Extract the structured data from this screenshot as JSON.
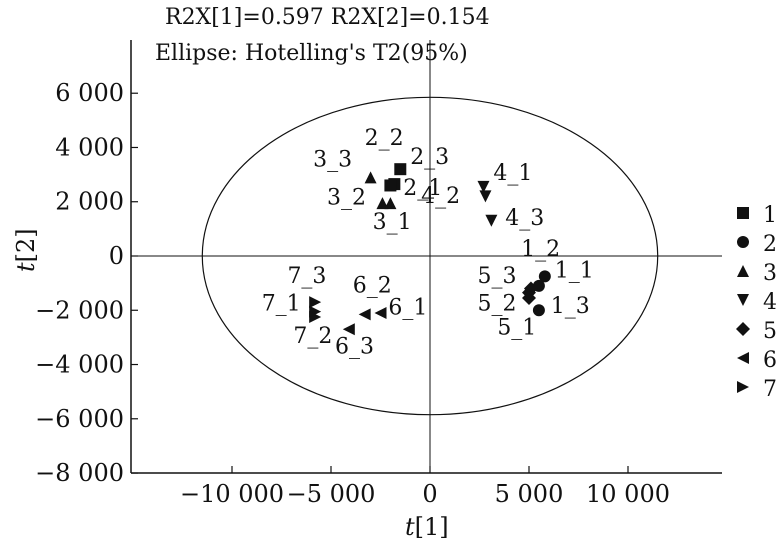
{
  "chart_data": {
    "type": "scatter",
    "title_line1": "R2X[1]=0.597 R2X[2]=0.154",
    "title_line2": "Ellipse: Hotelling's T2(95%)",
    "xlabel": {
      "main": "t",
      "sub": "[1]"
    },
    "ylabel": {
      "main": "t",
      "sub": "[2]"
    },
    "xlim": [
      -15000,
      15000
    ],
    "ylim": [
      -8000,
      8000
    ],
    "x_ticks": [
      -10000,
      -5000,
      0,
      5000,
      10000
    ],
    "x_tick_labels": [
      "−10 000",
      "−5 000",
      "0",
      "5 000",
      "10 000"
    ],
    "y_ticks": [
      6000,
      4000,
      2000,
      0,
      -2000,
      -4000,
      -6000,
      -8000
    ],
    "y_tick_labels": [
      "6 000",
      "4 000",
      "2 000",
      "0",
      "−2 000",
      "−4 000",
      "−6 000",
      "−8 000"
    ],
    "ellipse": {
      "cx": 0,
      "cy": 0,
      "rx": 11500,
      "ry": 5850
    },
    "grid": false,
    "legend_position": "right",
    "series": [
      {
        "name": "1",
        "marker": "square",
        "points": [
          {
            "label": "1_1",
            "x": -1800,
            "y": 2650
          },
          {
            "label": "1_2",
            "x": -1500,
            "y": 3200
          },
          {
            "label": "1_3",
            "x": -2000,
            "y": 2600
          }
        ]
      },
      {
        "name": "2",
        "marker": "circle",
        "points": [
          {
            "label": "2_1",
            "x": 5800,
            "y": -750
          },
          {
            "label": "2_2",
            "x": 5500,
            "y": -1100
          },
          {
            "label": "2_3",
            "x": 5500,
            "y": -2000
          }
        ]
      },
      {
        "name": "3",
        "marker": "triangle-up",
        "points": [
          {
            "label": "3_1",
            "x": -2000,
            "y": 1950
          },
          {
            "label": "3_2",
            "x": -2400,
            "y": 1950
          },
          {
            "label": "3_3",
            "x": -3000,
            "y": 2900
          }
        ]
      },
      {
        "name": "4",
        "marker": "triangle-down",
        "points": [
          {
            "label": "4_1",
            "x": 2700,
            "y": 2550
          },
          {
            "label": "4_2",
            "x": 2800,
            "y": 2200
          },
          {
            "label": "4_3",
            "x": 3100,
            "y": 1300
          }
        ]
      },
      {
        "name": "5",
        "marker": "diamond",
        "points": [
          {
            "label": "5_1",
            "x": 5000,
            "y": -1550
          },
          {
            "label": "5_2",
            "x": 5000,
            "y": -1350
          },
          {
            "label": "5_3",
            "x": 5100,
            "y": -1200
          }
        ]
      },
      {
        "name": "6",
        "marker": "triangle-left",
        "points": [
          {
            "label": "6_1",
            "x": -2500,
            "y": -2100
          },
          {
            "label": "6_2",
            "x": -3300,
            "y": -2150
          },
          {
            "label": "6_3",
            "x": -4100,
            "y": -2700
          }
        ]
      },
      {
        "name": "7",
        "marker": "triangle-right",
        "points": [
          {
            "label": "7_1",
            "x": -5800,
            "y": -1700
          },
          {
            "label": "7_2",
            "x": -5800,
            "y": -2050
          },
          {
            "label": "7_3",
            "x": -5800,
            "y": -2250
          }
        ]
      }
    ],
    "point_labels": [
      {
        "text": "1_1",
        "x": 6300,
        "y": -800
      },
      {
        "text": "1_2",
        "x": 4600,
        "y": 0
      },
      {
        "text": "1_3",
        "x": 6100,
        "y": -2100
      },
      {
        "text": "2_1",
        "x": -1350,
        "y": 2250
      },
      {
        "text": "2_2",
        "x": -3300,
        "y": 4100
      },
      {
        "text": "2_3",
        "x": -1000,
        "y": 3400
      },
      {
        "text": "3_1",
        "x": -2900,
        "y": 1000
      },
      {
        "text": "3_2",
        "x": -5200,
        "y": 1900
      },
      {
        "text": "3_3",
        "x": -5900,
        "y": 3300
      },
      {
        "text": "4_1",
        "x": 3200,
        "y": 2800
      },
      {
        "text": "4_2",
        "x": -450,
        "y": 1950
      },
      {
        "text": "4_3",
        "x": 3800,
        "y": 1150
      },
      {
        "text": "5_1",
        "x": 3400,
        "y": -2900
      },
      {
        "text": "5_2",
        "x": 2400,
        "y": -2000
      },
      {
        "text": "5_3",
        "x": 2400,
        "y": -1000
      },
      {
        "text": "6_1",
        "x": -2100,
        "y": -2150
      },
      {
        "text": "6_2",
        "x": -3900,
        "y": -1350
      },
      {
        "text": "6_3",
        "x": -4800,
        "y": -3600
      },
      {
        "text": "7_1",
        "x": -8500,
        "y": -2000
      },
      {
        "text": "7_2",
        "x": -6900,
        "y": -3200
      },
      {
        "text": "7_3",
        "x": -7200,
        "y": -1000
      }
    ]
  }
}
